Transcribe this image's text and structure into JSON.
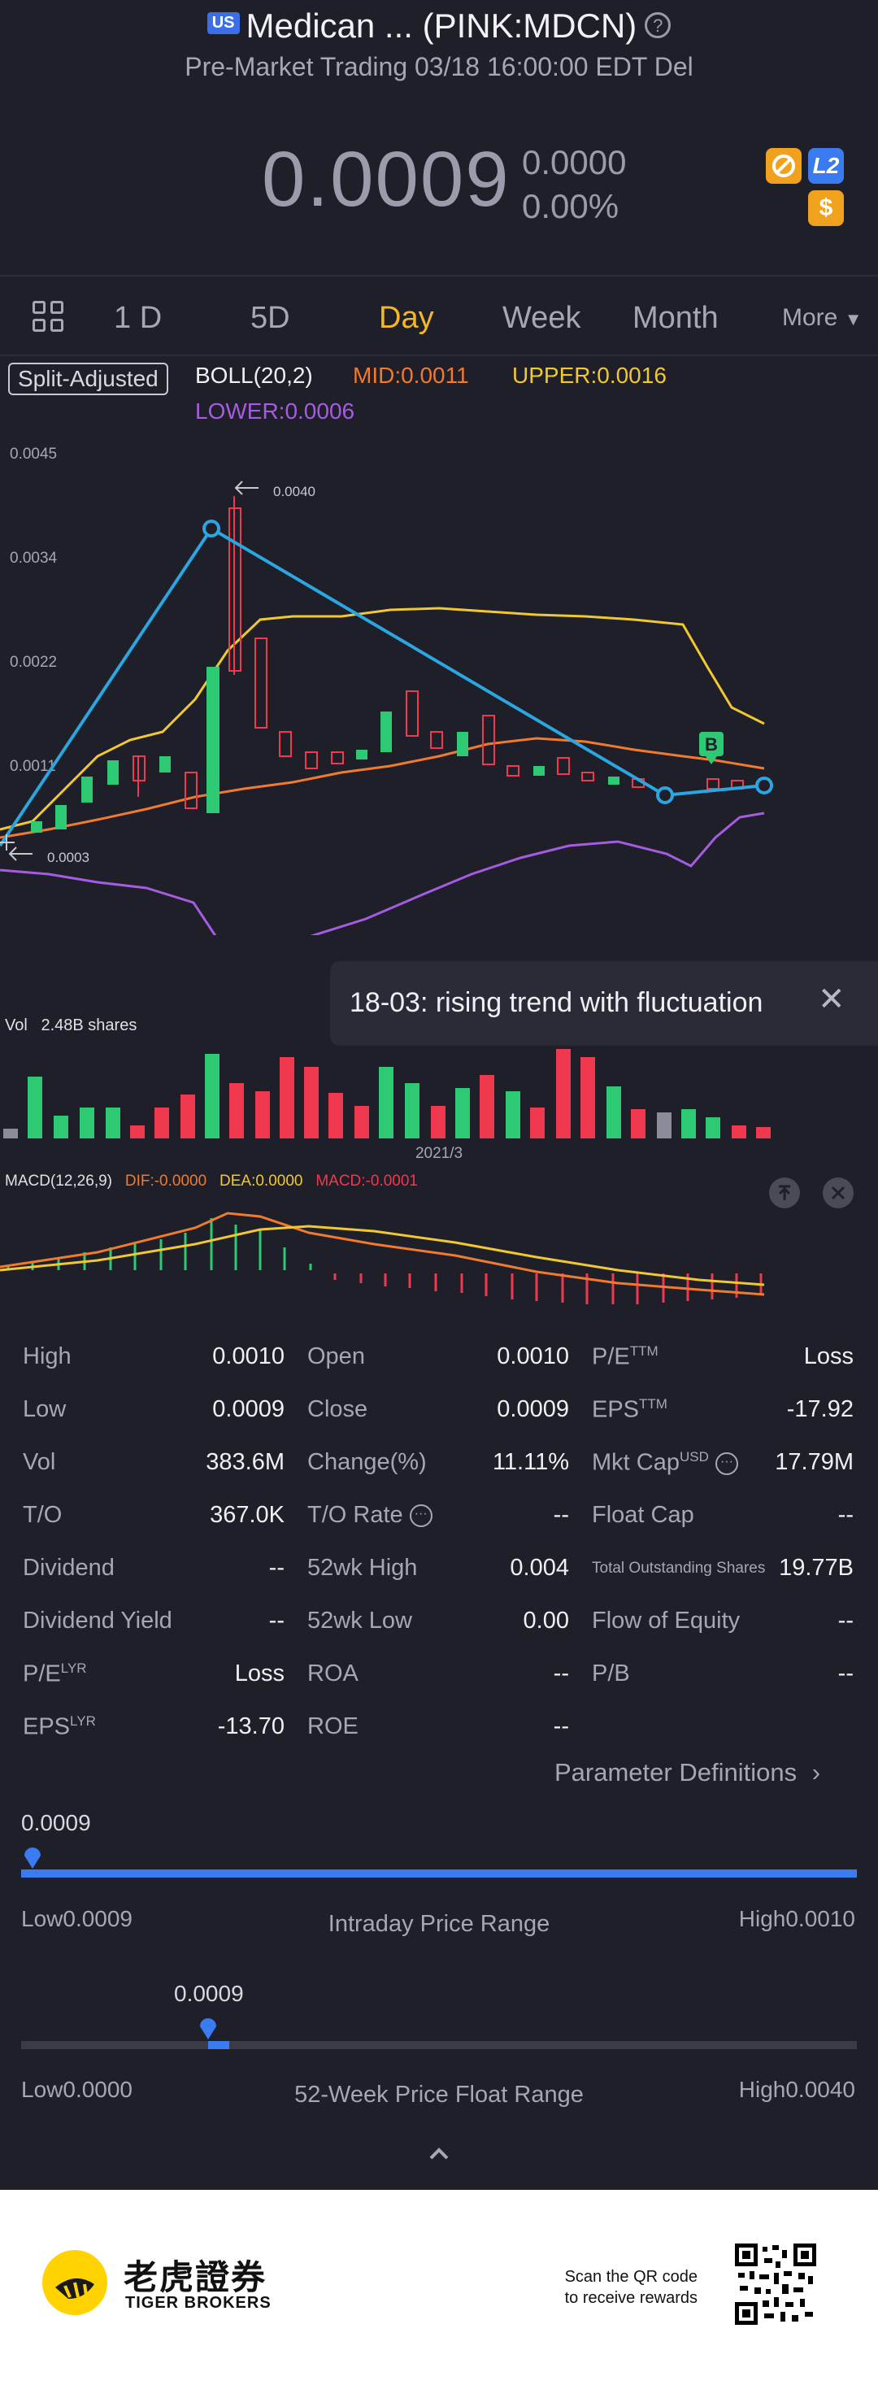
{
  "header": {
    "badge": "US",
    "title": "Medican ... (PINK:MDCN)",
    "subtitle": "Pre-Market Trading 03/18 16:00:00 EDT Del",
    "price": "0.0009",
    "change": "0.0000",
    "change_pct": "0.00%",
    "icon_l2": "L2",
    "icon_dollar": "$",
    "help": "?"
  },
  "tabs": {
    "items": [
      "1 D",
      "5D",
      "Day",
      "Week",
      "Month"
    ],
    "active": "Day",
    "more": "More"
  },
  "indicators": {
    "split": "Split-Adjusted",
    "boll": "BOLL(20,2)",
    "mid": "MID:0.0011",
    "upper": "UPPER:0.0016",
    "lower": "LOWER:0.0006"
  },
  "chart_data": {
    "type": "candlestick",
    "yticks": [
      "0.0045",
      "0.0034",
      "0.0022",
      "0.0011"
    ],
    "max_label": "0.0040",
    "min_label": "0.0003",
    "buy_marker": "B",
    "tooltip": "18-03: rising trend with fluctuation",
    "colors": {
      "up": "#2ec973",
      "down": "#f0384f",
      "mid": "#f07a2e",
      "upper": "#f0c832",
      "lower": "#a65ce0",
      "trend": "#2ba6e0"
    }
  },
  "volume": {
    "label": "Vol",
    "value": "2.48B shares",
    "date_label": "2021/3"
  },
  "macd": {
    "label": "MACD(12,26,9)",
    "dif": "DIF:-0.0000",
    "dea": "DEA:0.0000",
    "macd": "MACD:-0.0001"
  },
  "stats": {
    "high_l": "High",
    "high_v": "0.0010",
    "open_l": "Open",
    "open_v": "0.0010",
    "pe_l": "P/E",
    "pe_sup": "TTM",
    "pe_v": "Loss",
    "low_l": "Low",
    "low_v": "0.0009",
    "close_l": "Close",
    "close_v": "0.0009",
    "eps_l": "EPS",
    "eps_sup": "TTM",
    "eps_v": "-17.92",
    "vol_l": "Vol",
    "vol_v": "383.6M",
    "chg_l": "Change(%)",
    "chg_v": "11.11%",
    "mcap_l": "Mkt Cap",
    "mcap_sup": "USD",
    "mcap_v": "17.79M",
    "to_l": "T/O",
    "to_v": "367.0K",
    "torate_l": "T/O Rate",
    "torate_v": "--",
    "float_l": "Float Cap",
    "float_v": "--",
    "div_l": "Dividend",
    "div_v": "--",
    "wkhigh_l": "52wk High",
    "wkhigh_v": "0.004",
    "tos_l": "Total Outstanding Shares",
    "tos_v": "19.77B",
    "divy_l": "Dividend Yield",
    "divy_v": "--",
    "wklow_l": "52wk Low",
    "wklow_v": "0.00",
    "foe_l": "Flow of Equity",
    "foe_v": "--",
    "pelyr_l": "P/E",
    "pelyr_sup": "LYR",
    "pelyr_v": "Loss",
    "roa_l": "ROA",
    "roa_v": "--",
    "pb_l": "P/B",
    "pb_v": "--",
    "epslyr_l": "EPS",
    "epslyr_sup": "LYR",
    "epslyr_v": "-13.70",
    "roe_l": "ROE",
    "roe_v": "--",
    "param_def": "Parameter Definitions"
  },
  "intraday": {
    "current": "0.0009",
    "low": "Low0.0009",
    "high": "High0.0010",
    "label": "Intraday Price Range",
    "position": 0.01
  },
  "week52": {
    "current": "0.0009",
    "low": "Low0.0000",
    "high": "High0.0040",
    "label": "52-Week Price Float Range",
    "position": 0.225
  },
  "footer": {
    "brand_cn": "老虎證券",
    "brand_en": "TIGER BROKERS",
    "qr_line1": "Scan the QR code",
    "qr_line2": "to receive rewards"
  }
}
